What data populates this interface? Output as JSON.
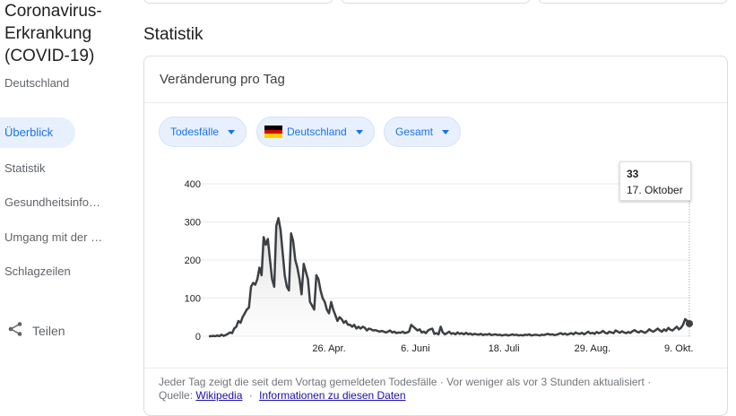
{
  "sidebar": {
    "title": "Coronavirus-Erkrankung (COVID-19)",
    "subtitle": "Deutschland",
    "items": [
      {
        "label": "Überblick",
        "active": true
      },
      {
        "label": "Statistik"
      },
      {
        "label": "Gesundheitsinfo…"
      },
      {
        "label": "Umgang mit der …"
      },
      {
        "label": "Schlagzeilen"
      }
    ],
    "share_label": "Teilen",
    "share_icon": "share-icon"
  },
  "section": {
    "title": "Statistik"
  },
  "card": {
    "title": "Veränderung pro Tag",
    "filters": {
      "metric": "Todesfälle",
      "region": "Deutschland",
      "region_flag_icon": "germany-flag-icon",
      "range": "Gesamt"
    },
    "tooltip": {
      "value": "33",
      "date": "17. Oktober"
    },
    "footer": {
      "line1": "Jeder Tag zeigt die seit dem Vortag gemeldeten Todesfälle · Vor weniger als vor 3 Stunden aktualisiert ·",
      "source_prefix": "Quelle:",
      "source_link": "Wikipedia",
      "sep": "·",
      "info_link": "Informationen zu diesen Daten"
    }
  },
  "colors": {
    "accent": "#1a73e8",
    "chip_bg": "#e8f0fe",
    "line": "#3c4043",
    "link": "#1a0dab"
  },
  "chart_data": {
    "type": "line",
    "ylim": [
      0,
      400
    ],
    "y_ticks": [
      "0",
      "100",
      "200",
      "300",
      "400"
    ],
    "x_ticks": [
      "26. Apr.",
      "6. Juni",
      "18. Juli",
      "29. Aug.",
      "9. Okt."
    ],
    "x_tick_days": [
      57,
      98,
      140,
      182,
      223
    ],
    "series": [
      {
        "values": [
          0,
          0,
          1,
          0,
          2,
          0,
          4,
          1,
          3,
          6,
          10,
          8,
          20,
          25,
          40,
          35,
          50,
          60,
          70,
          75,
          130,
          140,
          135,
          150,
          180,
          160,
          260,
          240,
          255,
          200,
          150,
          130,
          290,
          310,
          280,
          220,
          160,
          130,
          120,
          270,
          250,
          200,
          180,
          150,
          110,
          190,
          170,
          150,
          90,
          80,
          70,
          160,
          150,
          120,
          100,
          90,
          70,
          60,
          90,
          70,
          55,
          40,
          50,
          45,
          35,
          40,
          30,
          30,
          25,
          30,
          20,
          25,
          20,
          25,
          22,
          15,
          20,
          18,
          15,
          16,
          14,
          12,
          14,
          12,
          10,
          12,
          15,
          10,
          12,
          8,
          10,
          9,
          12,
          8,
          10,
          12,
          30,
          25,
          20,
          15,
          18,
          10,
          12,
          8,
          15,
          18,
          20,
          6,
          8,
          5,
          25,
          10,
          5,
          8,
          12,
          6,
          8,
          5,
          10,
          6,
          8,
          5,
          9,
          5,
          7,
          4,
          6,
          5,
          4,
          6,
          3,
          5,
          4,
          6,
          3,
          4,
          5,
          3,
          4,
          2,
          3,
          4,
          2,
          3,
          5,
          3,
          4,
          2,
          3,
          2,
          4,
          3,
          5,
          2,
          3,
          4,
          3,
          2,
          4,
          3,
          5,
          6,
          4,
          5,
          3,
          4,
          6,
          8,
          5,
          7,
          4,
          6,
          8,
          5,
          10,
          7,
          6,
          9,
          5,
          8,
          12,
          7,
          9,
          6,
          11,
          8,
          10,
          14,
          9,
          7,
          12,
          10,
          8,
          15,
          12,
          9,
          13,
          10,
          8,
          11,
          9,
          13,
          16,
          12,
          10,
          14,
          11,
          9,
          13,
          18,
          14,
          12,
          16,
          20,
          15,
          12,
          18,
          14,
          22,
          17,
          15,
          20,
          25,
          18,
          22,
          30,
          45,
          40,
          33
        ]
      }
    ],
    "marker_value": 33
  }
}
